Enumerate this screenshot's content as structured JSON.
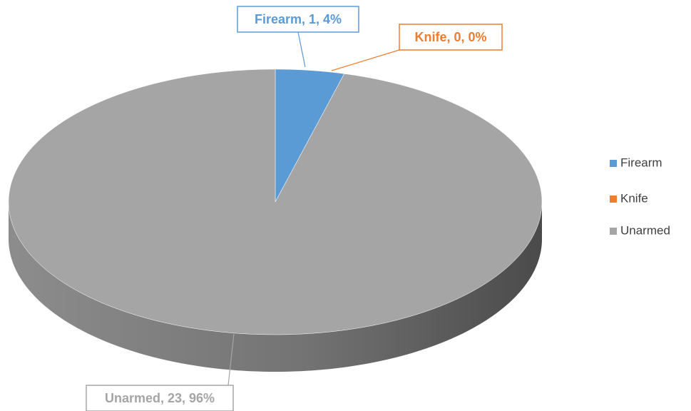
{
  "chart_data": {
    "type": "pie",
    "categories": [
      "Firearm",
      "Knife",
      "Unarmed"
    ],
    "values": [
      1,
      0,
      23
    ],
    "value_labels": [
      "Firearm, 1, 4%",
      "Knife, 0, 0%",
      "Unarmed, 23, 96%"
    ],
    "colors": [
      "#5b9bd5",
      "#ed7d31",
      "#a5a5a5"
    ],
    "legend": "right"
  }
}
